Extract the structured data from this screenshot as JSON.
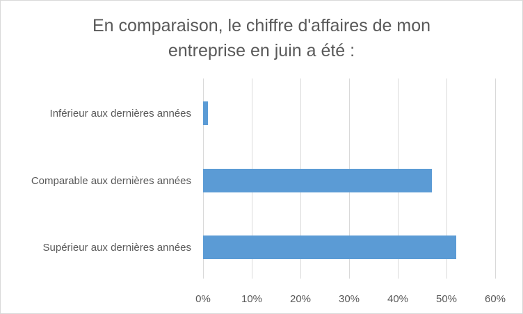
{
  "chart_data": {
    "type": "bar",
    "orientation": "horizontal",
    "title_lines": [
      "En comparaison, le chiffre d'affaires de mon",
      "entreprise en juin a été :"
    ],
    "categories": [
      "Inférieur aux dernières années",
      "Comparable aux dernières années",
      "Supérieur aux dernières années"
    ],
    "values": [
      1,
      47,
      52
    ],
    "value_unit": "%",
    "xlim": [
      0,
      60
    ],
    "x_ticks": [
      "0%",
      "10%",
      "20%",
      "30%",
      "40%",
      "50%",
      "60%"
    ],
    "x_tick_values": [
      0,
      10,
      20,
      30,
      40,
      50,
      60
    ],
    "grid": "vertical",
    "legend": "none",
    "bar_color": "#5b9bd5"
  }
}
